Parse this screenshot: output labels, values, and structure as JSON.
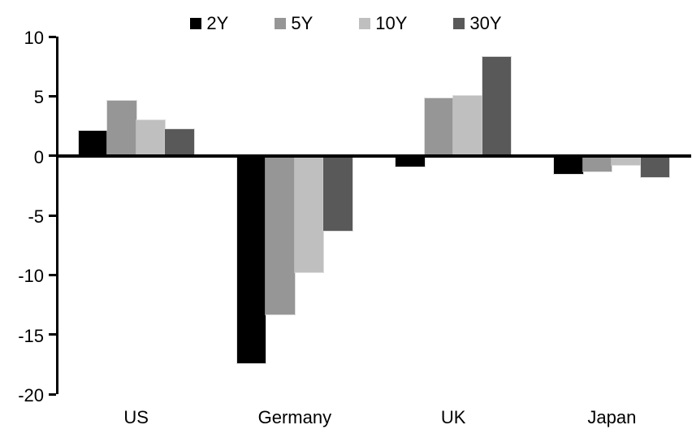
{
  "chart_data": {
    "type": "bar",
    "title": "",
    "xlabel": "",
    "ylabel": "",
    "categories": [
      "US",
      "Germany",
      "UK",
      "Japan"
    ],
    "series": [
      {
        "name": "2Y",
        "color": "#000000",
        "values": [
          2.1,
          -17.4,
          -0.9,
          -1.5
        ]
      },
      {
        "name": "5Y",
        "color": "#969696",
        "values": [
          4.6,
          -13.3,
          4.8,
          -1.3
        ]
      },
      {
        "name": "10Y",
        "color": "#BFBFBF",
        "values": [
          3.0,
          -9.8,
          5.0,
          -0.8
        ]
      },
      {
        "name": "30Y",
        "color": "#595959",
        "values": [
          2.2,
          -6.3,
          8.3,
          -1.8
        ]
      }
    ],
    "ylim": [
      -20,
      10
    ],
    "yticks": [
      "10",
      "5",
      "0",
      "-5",
      "-10",
      "-15",
      "-20"
    ],
    "ytick_values": [
      10,
      5,
      0,
      -5,
      -10,
      -15,
      -20
    ],
    "legend_position": "top-center",
    "grid": false,
    "axis_color": "#000000",
    "background_color": "#ffffff"
  }
}
